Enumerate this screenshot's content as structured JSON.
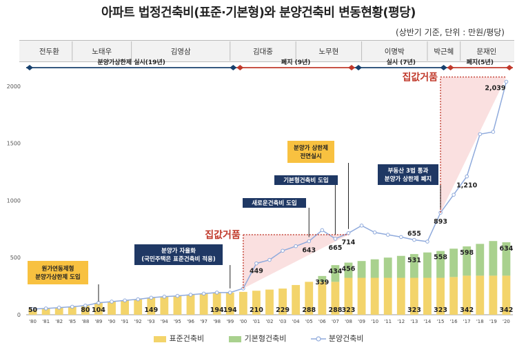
{
  "title": "아파트 법정건축비(표준·기본형)와 분양건축비 변동현황(평당)",
  "subtitle": "(상반기 기준, 단위 : 만원/평당)",
  "colors": {
    "standard": "#f3d46b",
    "basic": "#a9d18e",
    "sale": "#8faadc",
    "policy": "#17406d",
    "red": "#c0392b",
    "ann_yellow": "#f8c140",
    "ann_navy": "#1f3864"
  },
  "presidents": [
    "전두환",
    "노태우",
    "김영삼",
    "김대중",
    "노무현",
    "이명박",
    "박근혜",
    "문재인"
  ],
  "policies": [
    "분양가상한제 실시(19년)",
    "폐지 (9년)",
    "실시 (7년)",
    "폐지(5년)"
  ],
  "annotations": [
    "원가연동제형\n분양가상한제 도입",
    "분양가 자율화\n(국민주택은 표준건축비 적용)",
    "새로운건축비 도입",
    "기본형건축비 도입",
    "분양가 상한제\n전면실시",
    "부동산 3법 통과\n분양가 상한제 폐지"
  ],
  "jip_label": "집값거품",
  "chart_data": {
    "type": "bar",
    "categories": [
      "'80",
      "'81",
      "'82",
      "'85",
      "'88",
      "'89",
      "'90",
      "'91",
      "'92",
      "'93",
      "'94",
      "'95",
      "'96",
      "'97",
      "'98",
      "'99",
      "'00",
      "'01",
      "'02",
      "'03",
      "'04",
      "'05",
      "'06",
      "'07",
      "'08",
      "'09",
      "'10",
      "'11",
      "'12",
      "'13",
      "'14",
      "'15",
      "'16",
      "'17",
      "'18",
      "'19",
      "'20"
    ],
    "series": [
      {
        "name": "표준건축비",
        "type": "bar",
        "values": [
          50,
          55,
          62,
          70,
          80,
          104,
          115,
          125,
          135,
          149,
          158,
          165,
          175,
          185,
          194,
          194,
          200,
          210,
          220,
          229,
          260,
          288,
          288,
          288,
          323,
          323,
          323,
          323,
          323,
          323,
          323,
          323,
          330,
          342,
          342,
          342,
          342
        ]
      },
      {
        "name": "기본형건축비",
        "type": "bar",
        "values": [
          0,
          0,
          0,
          0,
          0,
          0,
          0,
          0,
          0,
          0,
          0,
          0,
          0,
          0,
          0,
          0,
          0,
          0,
          0,
          0,
          0,
          0,
          339,
          434,
          456,
          470,
          485,
          500,
          515,
          531,
          545,
          558,
          578,
          598,
          620,
          645,
          634
        ]
      },
      {
        "name": "분양건축비",
        "type": "line",
        "values": [
          50,
          55,
          62,
          70,
          80,
          104,
          115,
          125,
          135,
          149,
          158,
          165,
          175,
          185,
          194,
          194,
          230,
          449,
          480,
          560,
          600,
          643,
          740,
          665,
          714,
          780,
          720,
          700,
          680,
          655,
          640,
          893,
          1050,
          1210,
          1580,
          1600,
          2039
        ]
      }
    ],
    "data_labels": [
      {
        "index": 0,
        "text": "50"
      },
      {
        "index": 4,
        "text": "80"
      },
      {
        "index": 5,
        "text": "104"
      },
      {
        "index": 9,
        "text": "149"
      },
      {
        "index": 14,
        "text": "194"
      },
      {
        "index": 15,
        "text": "194"
      },
      {
        "index": 17,
        "text": "210"
      },
      {
        "index": 19,
        "text": "229"
      },
      {
        "index": 21,
        "text": "288"
      },
      {
        "index": 23,
        "text": "288"
      },
      {
        "index": 24,
        "text": "323"
      },
      {
        "index": 29,
        "text": "323"
      },
      {
        "index": 31,
        "text": "323"
      },
      {
        "index": 33,
        "text": "342"
      },
      {
        "index": 36,
        "text": "342"
      },
      {
        "index": 22,
        "text": "339"
      },
      {
        "index": 23,
        "text": "434"
      },
      {
        "index": 24,
        "text": "456"
      },
      {
        "index": 29,
        "text": "531"
      },
      {
        "index": 31,
        "text": "558"
      },
      {
        "index": 33,
        "text": "598"
      },
      {
        "index": 36,
        "text": "634"
      },
      {
        "index": 17,
        "text": "449"
      },
      {
        "index": 21,
        "text": "643"
      },
      {
        "index": 23,
        "text": "665"
      },
      {
        "index": 24,
        "text": "714"
      },
      {
        "index": 29,
        "text": "655"
      },
      {
        "index": 31,
        "text": "893"
      },
      {
        "index": 33,
        "text": "1,210"
      },
      {
        "index": 36,
        "text": "2,039"
      }
    ],
    "yticks": [
      0,
      500,
      1000,
      1500,
      2000
    ],
    "ylim": [
      0,
      2150
    ],
    "legend": [
      "표준건축비",
      "기본형건축비",
      "분양건축비"
    ],
    "legend_position": "bottom"
  }
}
